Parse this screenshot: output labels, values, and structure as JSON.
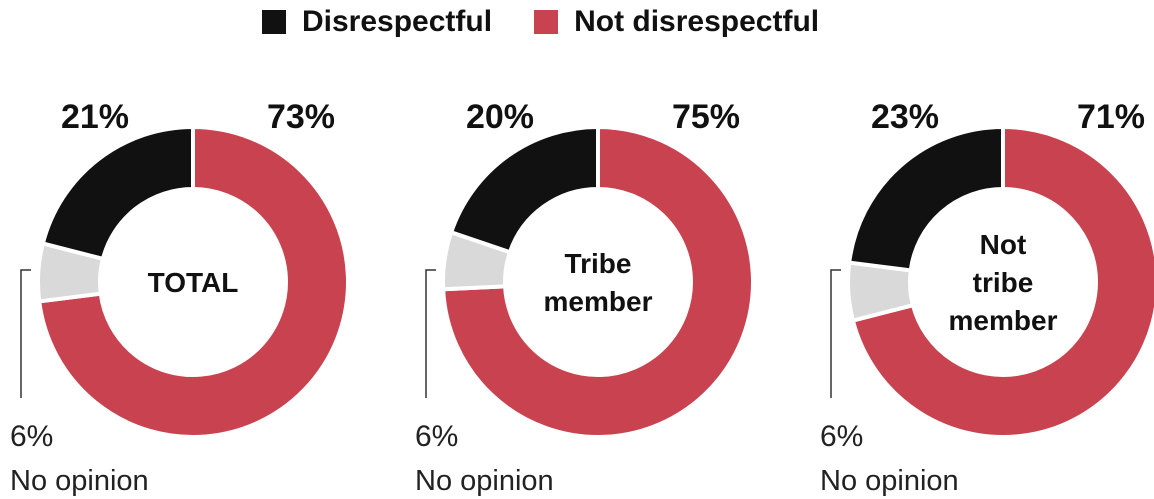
{
  "legend": {
    "items": [
      {
        "label": "Disrespectful",
        "color": "#111111"
      },
      {
        "label": "Not disrespectful",
        "color": "#c8434f"
      }
    ]
  },
  "colors": {
    "disrespectful": "#111111",
    "not_disrespectful": "#c8434f",
    "no_opinion": "#d9d9d9"
  },
  "chart_data": [
    {
      "type": "pie",
      "title": "TOTAL",
      "categories": [
        "Disrespectful",
        "Not disrespectful",
        "No opinion"
      ],
      "values": [
        21,
        73,
        6
      ],
      "labels": [
        "21%",
        "73%",
        "6%"
      ],
      "center_lines": [
        "TOTAL"
      ]
    },
    {
      "type": "pie",
      "title": "Tribe member",
      "categories": [
        "Disrespectful",
        "Not disrespectful",
        "No opinion"
      ],
      "values": [
        20,
        75,
        6
      ],
      "labels": [
        "20%",
        "75%",
        "6%"
      ],
      "center_lines": [
        "Tribe",
        "member"
      ]
    },
    {
      "type": "pie",
      "title": "Not tribe member",
      "categories": [
        "Disrespectful",
        "Not disrespectful",
        "No opinion"
      ],
      "values": [
        23,
        71,
        6
      ],
      "labels": [
        "23%",
        "71%",
        "6%"
      ],
      "center_lines": [
        "Not",
        "tribe",
        "member"
      ]
    }
  ],
  "no_opinion_label": "No opinion"
}
